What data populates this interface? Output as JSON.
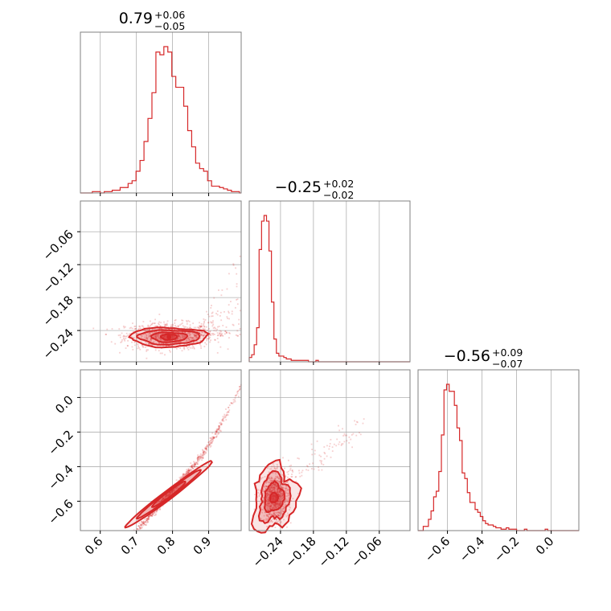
{
  "colors": {
    "accent": "#d62728",
    "grid": "#b0b0b0",
    "frame": "#808080"
  },
  "chart_data": {
    "type": "corner",
    "description_free": true,
    "params": [
      {
        "median": "0.79",
        "plus": "+0.06",
        "minus": "−0.05",
        "range": [
          0.545,
          0.99
        ]
      },
      {
        "median": "−0.25",
        "plus": "+0.02",
        "minus": "−0.02",
        "range": [
          -0.297,
          -0.004
        ]
      },
      {
        "median": "−0.56",
        "plus": "+0.09",
        "minus": "−0.07",
        "range": [
          -0.77,
          0.16
        ]
      }
    ],
    "x_ticks": [
      {
        "values": [
          0.6,
          0.7,
          0.8,
          0.9
        ],
        "labels": [
          "0.6",
          "0.7",
          "0.8",
          "0.9"
        ]
      },
      {
        "values": [
          -0.24,
          -0.18,
          -0.12,
          -0.06
        ],
        "labels": [
          "−0.24",
          "−0.18",
          "−0.12",
          "−0.06"
        ]
      },
      {
        "values": [
          -0.6,
          -0.4,
          -0.2,
          0.0
        ],
        "labels": [
          "−0.6",
          "−0.4",
          "−0.2",
          "0.0"
        ]
      }
    ],
    "y_ticks": [
      null,
      {
        "values": [
          -0.06,
          -0.12,
          -0.18,
          -0.24
        ],
        "labels": [
          "−0.06",
          "−0.12",
          "−0.18",
          "−0.24"
        ]
      },
      {
        "values": [
          0.0,
          -0.2,
          -0.4,
          -0.6
        ],
        "labels": [
          "0.0",
          "−0.2",
          "−0.4",
          "−0.6"
        ]
      }
    ],
    "hist1": {
      "edges": [
        0.545,
        0.556,
        0.567,
        0.578,
        0.589,
        0.6,
        0.611,
        0.622,
        0.633,
        0.644,
        0.655,
        0.666,
        0.677,
        0.688,
        0.699,
        0.71,
        0.721,
        0.732,
        0.743,
        0.754,
        0.765,
        0.776,
        0.787,
        0.798,
        0.809,
        0.82,
        0.831,
        0.842,
        0.853,
        0.864,
        0.875,
        0.886,
        0.897,
        0.908,
        0.919,
        0.93,
        0.941,
        0.952,
        0.963,
        0.974,
        0.985,
        0.99
      ],
      "counts": [
        0,
        0,
        0,
        1,
        1,
        0,
        1,
        1,
        2,
        2,
        4,
        4,
        7,
        9,
        16,
        24,
        38,
        55,
        74,
        104,
        102,
        108,
        104,
        86,
        78,
        78,
        64,
        46,
        34,
        22,
        18,
        16,
        9,
        5,
        5,
        4,
        3,
        2,
        1,
        1,
        0
      ]
    },
    "hist2": {
      "edges": [
        -0.297,
        -0.2925,
        -0.288,
        -0.2835,
        -0.279,
        -0.2745,
        -0.27,
        -0.2655,
        -0.261,
        -0.2565,
        -0.252,
        -0.2475,
        -0.243,
        -0.2385,
        -0.234,
        -0.2295,
        -0.225,
        -0.2205,
        -0.216,
        -0.2115,
        -0.207,
        -0.2025,
        -0.198,
        -0.1935,
        -0.189,
        -0.1845,
        -0.18,
        -0.1755,
        -0.171,
        -0.1665,
        -0.162,
        -0.1575,
        -0.153,
        -0.1485,
        -0.144,
        -0.1395,
        -0.135,
        -0.1305,
        -0.126,
        -0.1215,
        -0.117,
        -0.004
      ],
      "counts": [
        3,
        5,
        12,
        24,
        79,
        99,
        103,
        99,
        78,
        42,
        16,
        6,
        4,
        4,
        3,
        2,
        2,
        1,
        1,
        1,
        1,
        1,
        1,
        1,
        0,
        0,
        0,
        1,
        0,
        0,
        0,
        0,
        0,
        0,
        0,
        0,
        0,
        0,
        0,
        0,
        0
      ]
    },
    "hist3": {
      "edges": [
        -0.77,
        -0.755,
        -0.74,
        -0.725,
        -0.71,
        -0.695,
        -0.68,
        -0.665,
        -0.65,
        -0.635,
        -0.62,
        -0.605,
        -0.59,
        -0.575,
        -0.56,
        -0.545,
        -0.53,
        -0.515,
        -0.5,
        -0.485,
        -0.47,
        -0.455,
        -0.44,
        -0.425,
        -0.41,
        -0.395,
        -0.38,
        -0.365,
        -0.35,
        -0.335,
        -0.32,
        -0.305,
        -0.29,
        -0.275,
        -0.26,
        -0.245,
        -0.23,
        -0.215,
        -0.2,
        -0.185,
        -0.17,
        -0.155,
        -0.14,
        -0.125,
        -0.11,
        -0.095,
        -0.08,
        -0.065,
        -0.05,
        -0.035,
        -0.02,
        -0.005,
        0.16
      ],
      "counts": [
        0,
        0,
        3,
        3,
        8,
        14,
        24,
        28,
        42,
        68,
        100,
        104,
        99,
        99,
        89,
        73,
        64,
        41,
        37,
        27,
        20,
        20,
        15,
        13,
        10,
        7,
        5,
        4,
        4,
        3,
        2,
        2,
        1,
        1,
        2,
        1,
        1,
        1,
        0,
        0,
        0,
        1,
        0,
        0,
        0,
        0,
        0,
        0,
        0,
        1,
        0,
        0
      ]
    }
  }
}
